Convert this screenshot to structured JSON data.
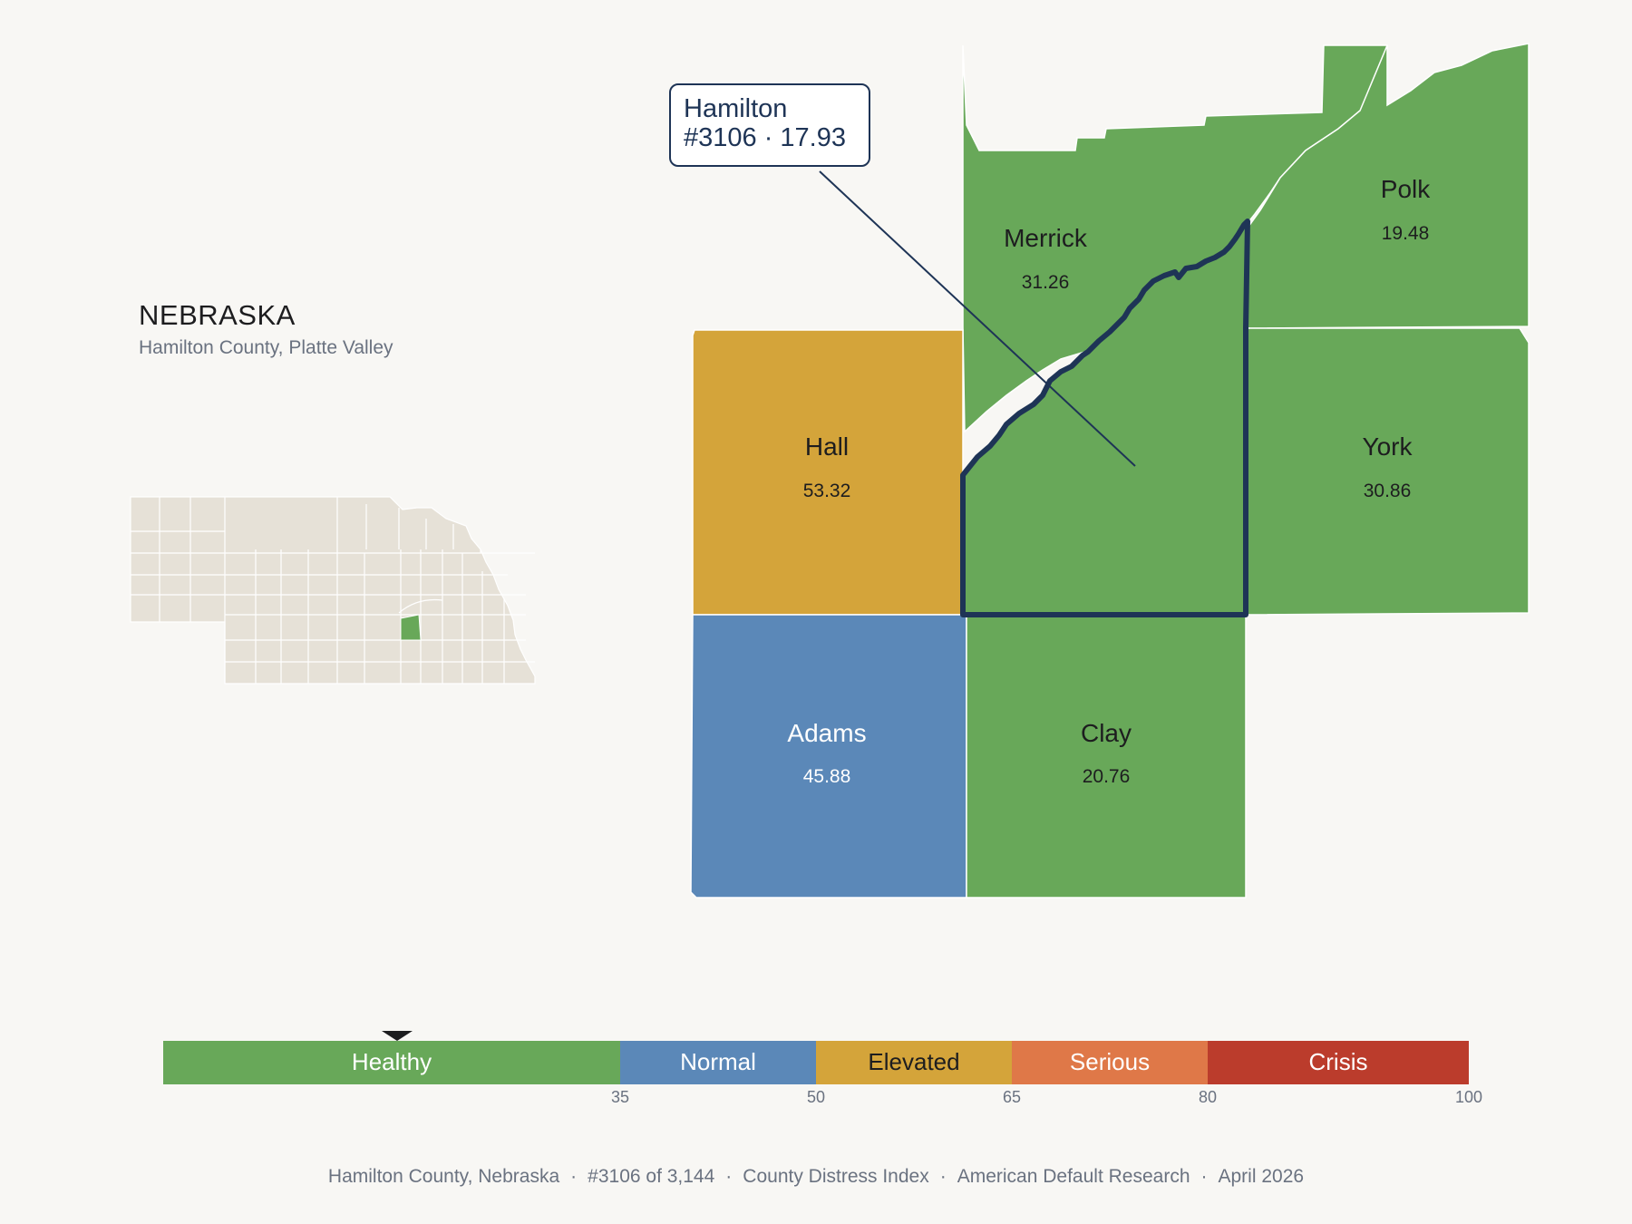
{
  "header": {
    "state": "NEBRASKA",
    "subtitle": "Hamilton County, Platte Valley"
  },
  "callout": {
    "line1": "Hamilton",
    "line2": "#3106 · 17.93"
  },
  "colors": {
    "healthy": "#68a859",
    "normal": "#5b88b8",
    "elevated": "#d4a43a",
    "serious": "#df7848",
    "crisis": "#bb3c2c",
    "highlight": "#1e3456",
    "inset_fill": "#e6e1d7",
    "background": "#f8f7f4"
  },
  "counties": [
    {
      "name": "Merrick",
      "value": "31.26",
      "category": "healthy"
    },
    {
      "name": "Polk",
      "value": "19.48",
      "category": "healthy"
    },
    {
      "name": "Hall",
      "value": "53.32",
      "category": "elevated"
    },
    {
      "name": "York",
      "value": "30.86",
      "category": "healthy"
    },
    {
      "name": "Adams",
      "value": "45.88",
      "category": "normal"
    },
    {
      "name": "Clay",
      "value": "20.76",
      "category": "healthy"
    },
    {
      "name": "Hamilton",
      "value": "17.93",
      "category": "healthy",
      "rank": "#3106",
      "selected": true
    }
  ],
  "legend": {
    "categories": [
      {
        "label": "Healthy",
        "from": 0,
        "to": 35,
        "color": "#68a859"
      },
      {
        "label": "Normal",
        "from": 35,
        "to": 50,
        "color": "#5b88b8"
      },
      {
        "label": "Elevated",
        "from": 50,
        "to": 65,
        "color": "#d4a43a"
      },
      {
        "label": "Serious",
        "from": 65,
        "to": 80,
        "color": "#df7848"
      },
      {
        "label": "Crisis",
        "from": 80,
        "to": 100,
        "color": "#bb3c2c"
      }
    ],
    "ticks": [
      "35",
      "50",
      "65",
      "80",
      "100"
    ],
    "marker_value": 17.93
  },
  "footer": {
    "items": [
      "Hamilton County, Nebraska",
      "#3106 of 3,144",
      "County Distress Index",
      "American Default Research",
      "April 2026"
    ]
  }
}
